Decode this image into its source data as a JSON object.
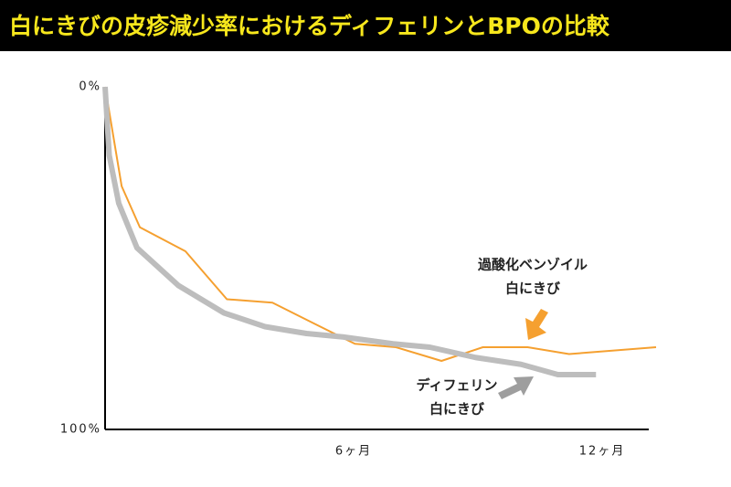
{
  "chart_data": {
    "type": "line",
    "title": "白にきびの皮疹減少率におけるディフェリンとBPOの比較",
    "xlim": [
      0,
      13.3
    ],
    "ylim": [
      0,
      100
    ],
    "y_inverted": true,
    "xticks": [
      {
        "value": 6,
        "label": "6ヶ月"
      },
      {
        "value": 12,
        "label": "12ヶ月"
      }
    ],
    "yticks": [
      {
        "value": 0,
        "label": "0%"
      },
      {
        "value": 100,
        "label": "100%"
      }
    ],
    "series": [
      {
        "label": [
          "過酸化ベンゾイル",
          "白にきび"
        ],
        "color": "#f5a030",
        "width": 2,
        "x": [
          0,
          0.4,
          0.84,
          1.94,
          2.94,
          4.04,
          5.03,
          6.03,
          7.02,
          8.12,
          9.12,
          10.2,
          11.2,
          13.3
        ],
        "values": [
          0,
          29,
          41,
          48,
          62,
          63,
          69,
          75,
          76,
          80,
          76,
          76,
          78,
          76
        ]
      },
      {
        "label": [
          "ディフェリン",
          "白にきび"
        ],
        "color": "#bdbdbd",
        "width": 6,
        "x": [
          0,
          0.1,
          0.33,
          0.77,
          1.77,
          2.87,
          3.86,
          4.86,
          5.74,
          6.95,
          7.84,
          8.94,
          10.04,
          10.93,
          11.85
        ],
        "values": [
          0,
          20,
          34,
          47,
          58,
          66,
          70,
          72,
          73,
          75,
          76,
          79,
          81,
          84,
          84
        ]
      }
    ]
  }
}
